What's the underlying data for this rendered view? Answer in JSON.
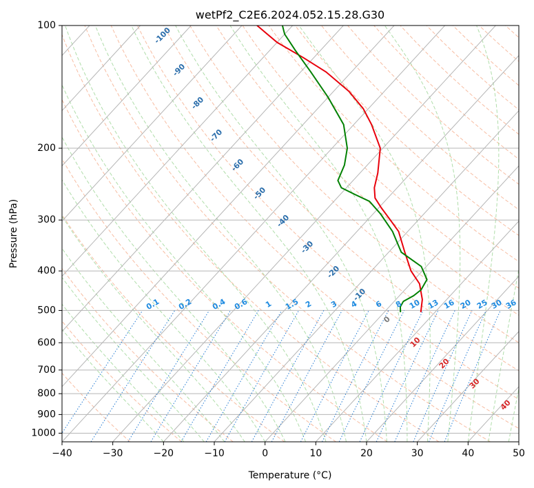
{
  "chart_data": {
    "type": "line",
    "subtype": "skew-t log-p diagram",
    "title": "wetPf2_C2E6.2024.052.15.28.G30",
    "xlabel": "Temperature (°C)",
    "ylabel": "Pressure (hPa)",
    "xlim": [
      -40,
      50
    ],
    "ylim": [
      1050,
      100
    ],
    "x_ticks": [
      -40,
      -30,
      -20,
      -10,
      0,
      10,
      20,
      30,
      40,
      50
    ],
    "x_tick_labels": [
      "−40",
      "−30",
      "−20",
      "−10",
      "0",
      "10",
      "20",
      "30",
      "40",
      "50"
    ],
    "y_ticks": [
      1000,
      900,
      800,
      700,
      600,
      500,
      400,
      300,
      200,
      100
    ],
    "y_tick_labels": [
      "1000",
      "900",
      "800",
      "700",
      "600",
      "500",
      "400",
      "300",
      "200",
      "100"
    ],
    "grid": true,
    "series": [
      {
        "name": "Temperature",
        "color": "#e8000b",
        "points": [
          {
            "p": 505,
            "t": 7.2
          },
          {
            "p": 470,
            "t": 5.2
          },
          {
            "p": 430,
            "t": 1.8
          },
          {
            "p": 400,
            "t": -2.2
          },
          {
            "p": 360,
            "t": -6.8
          },
          {
            "p": 320,
            "t": -11.8
          },
          {
            "p": 300,
            "t": -15.5
          },
          {
            "p": 280,
            "t": -19.5
          },
          {
            "p": 265,
            "t": -22.5
          },
          {
            "p": 250,
            "t": -24.5
          },
          {
            "p": 230,
            "t": -26.5
          },
          {
            "p": 200,
            "t": -30.5
          },
          {
            "p": 175,
            "t": -36.5
          },
          {
            "p": 160,
            "t": -41
          },
          {
            "p": 145,
            "t": -47
          },
          {
            "p": 130,
            "t": -55
          },
          {
            "p": 120,
            "t": -62
          },
          {
            "p": 110,
            "t": -70
          },
          {
            "p": 100,
            "t": -77
          }
        ]
      },
      {
        "name": "Dewpoint",
        "color": "#008000",
        "points": [
          {
            "p": 505,
            "t": 3.2
          },
          {
            "p": 490,
            "t": 2.2
          },
          {
            "p": 475,
            "t": 1.8
          },
          {
            "p": 460,
            "t": 2.8
          },
          {
            "p": 445,
            "t": 3.2
          },
          {
            "p": 420,
            "t": 2.5
          },
          {
            "p": 390,
            "t": -1
          },
          {
            "p": 360,
            "t": -7.5
          },
          {
            "p": 320,
            "t": -13
          },
          {
            "p": 290,
            "t": -18.5
          },
          {
            "p": 270,
            "t": -23
          },
          {
            "p": 260,
            "t": -27
          },
          {
            "p": 250,
            "t": -31
          },
          {
            "p": 240,
            "t": -33
          },
          {
            "p": 220,
            "t": -34.5
          },
          {
            "p": 200,
            "t": -37
          },
          {
            "p": 175,
            "t": -42
          },
          {
            "p": 150,
            "t": -50
          },
          {
            "p": 130,
            "t": -58
          },
          {
            "p": 115,
            "t": -65
          },
          {
            "p": 105,
            "t": -70
          },
          {
            "p": 100,
            "t": -72
          }
        ]
      }
    ],
    "dry_adiabat_labels": [
      "-100",
      "-90",
      "-80",
      "-70",
      "-60",
      "-50",
      "-40",
      "-30",
      "-20",
      "-10"
    ],
    "mixing_ratio_labels": [
      "0.1",
      "0.2",
      "0.4",
      "0.6",
      "1",
      "1.5",
      "2",
      "3",
      "4",
      "6",
      "8",
      "10",
      "13",
      "16",
      "20",
      "25",
      "30",
      "36"
    ],
    "moist_adiabat_labels": [
      "0",
      "10",
      "20",
      "30",
      "40"
    ]
  }
}
